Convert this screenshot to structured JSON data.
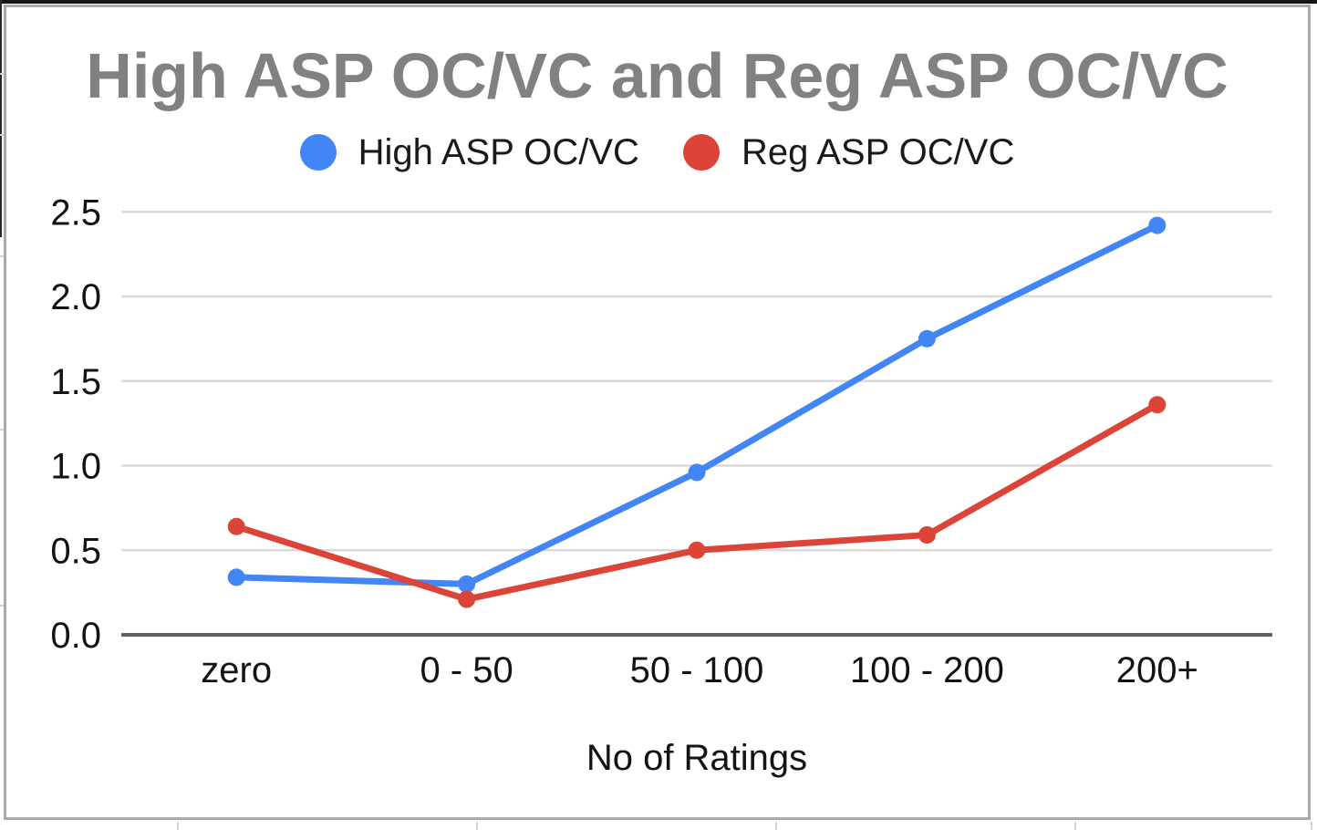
{
  "theme": {
    "page_bg": "#ffffff",
    "top_bar_color": "#161616",
    "frame_border_color": "#a9a9a9",
    "title_color": "#818181",
    "legend_text_color": "#1a1a1a",
    "tick_label_color": "#131313",
    "gridline_color": "#dadada",
    "axis_line_color": "#606060"
  },
  "chart_data": {
    "type": "line",
    "title": "High ASP OC/VC and Reg ASP OC/VC",
    "xlabel": "No of Ratings",
    "ylabel": "",
    "categories": [
      "zero",
      "0 - 50",
      "50 - 100",
      "100 - 200",
      "200+"
    ],
    "series": [
      {
        "name": "High ASP OC/VC",
        "color": "#4285f4",
        "values": [
          0.34,
          0.3,
          0.96,
          1.75,
          2.42
        ]
      },
      {
        "name": "Reg ASP OC/VC",
        "color": "#db4437",
        "values": [
          0.64,
          0.21,
          0.5,
          0.59,
          1.36
        ]
      }
    ],
    "ylim": [
      0,
      2.5
    ],
    "ytick_labels": [
      "0.0",
      "0.5",
      "1.0",
      "1.5",
      "2.0",
      "2.5"
    ],
    "grid": true,
    "legend_position": "top"
  }
}
